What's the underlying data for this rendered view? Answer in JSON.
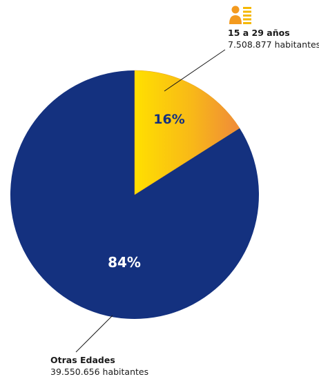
{
  "chart_data": {
    "type": "pie",
    "slices": [
      {
        "name": "15 a 29 años",
        "detail": "7.508.877 habitantes",
        "value": 16,
        "label": "16%",
        "color": "#f5b800"
      },
      {
        "name": "Otras Edades",
        "detail": "39.550.656 habitantes",
        "value": 84,
        "label": "84%",
        "color": "#14317f"
      }
    ]
  },
  "icons": {
    "young_group": "person-list-icon"
  }
}
